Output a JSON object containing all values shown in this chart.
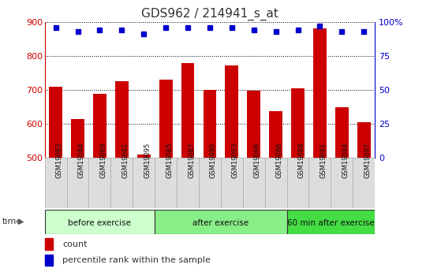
{
  "title": "GDS962 / 214941_s_at",
  "categories": [
    "GSM19083",
    "GSM19084",
    "GSM19089",
    "GSM19092",
    "GSM19095",
    "GSM19085",
    "GSM19087",
    "GSM19090",
    "GSM19093",
    "GSM19096",
    "GSM19086",
    "GSM19088",
    "GSM19091",
    "GSM19094",
    "GSM19097"
  ],
  "bar_values": [
    710,
    615,
    688,
    725,
    510,
    730,
    778,
    700,
    772,
    697,
    638,
    705,
    880,
    648,
    604
  ],
  "percentile_values": [
    96,
    93,
    94,
    94,
    91,
    96,
    96,
    96,
    96,
    94,
    93,
    94,
    97,
    93,
    93
  ],
  "bar_color": "#cc0000",
  "dot_color": "#0000cc",
  "ylim_left": [
    500,
    900
  ],
  "ylim_right": [
    0,
    100
  ],
  "yticks_left": [
    500,
    600,
    700,
    800,
    900
  ],
  "yticks_right": [
    0,
    25,
    50,
    75,
    100
  ],
  "groups": [
    {
      "label": "before exercise",
      "start": 0,
      "end": 5,
      "color": "#ccffcc"
    },
    {
      "label": "after exercise",
      "start": 5,
      "end": 11,
      "color": "#88ee88"
    },
    {
      "label": "60 min after exercise",
      "start": 11,
      "end": 15,
      "color": "#44dd44"
    }
  ],
  "xlabel_time": "time",
  "legend_count": "count",
  "legend_percentile": "percentile rank within the sample",
  "grid_color": "#000000",
  "bg_color": "#ffffff",
  "tick_label_color_left": "#cc0000",
  "tick_label_color_right": "#0000cc",
  "xticklabel_bg": "#cccccc",
  "title_fontsize": 11,
  "bar_bottom": 500
}
